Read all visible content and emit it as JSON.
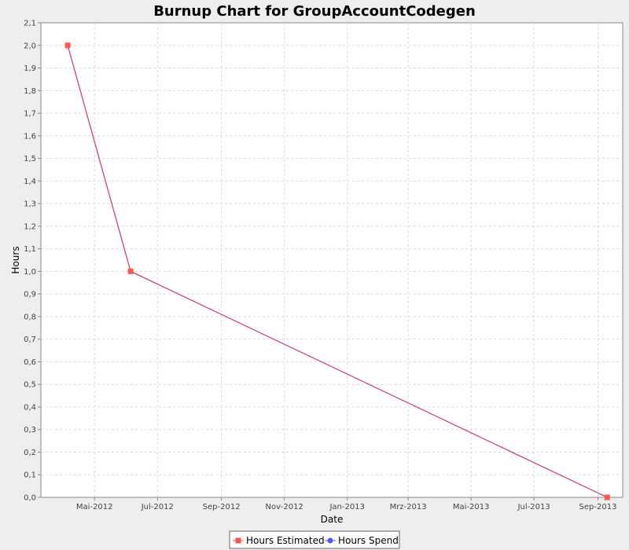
{
  "chart_data": {
    "type": "line",
    "title": "Burnup Chart for GroupAccountCodegen",
    "xlabel": "Date",
    "ylabel": "Hours",
    "ylim": [
      0.0,
      2.1
    ],
    "xlim": [
      "2012-03-10",
      "2013-09-25"
    ],
    "y_ticks": [
      "0,0",
      "0,1",
      "0,2",
      "0,3",
      "0,4",
      "0,5",
      "0,6",
      "0,7",
      "0,8",
      "0,9",
      "1,0",
      "1,1",
      "1,2",
      "1,3",
      "1,4",
      "1,5",
      "1,6",
      "1,7",
      "1,8",
      "1,9",
      "2,0",
      "2,1"
    ],
    "x_ticks": [
      {
        "label": "Mai-2012",
        "date": "2012-05-01"
      },
      {
        "label": "Jul-2012",
        "date": "2012-07-01"
      },
      {
        "label": "Sep-2012",
        "date": "2012-09-01"
      },
      {
        "label": "Nov-2012",
        "date": "2012-11-01"
      },
      {
        "label": "Jan-2013",
        "date": "2013-01-01"
      },
      {
        "label": "Mrz-2013",
        "date": "2013-03-01"
      },
      {
        "label": "Mai-2013",
        "date": "2013-05-01"
      },
      {
        "label": "Jul-2013",
        "date": "2013-07-01"
      },
      {
        "label": "Sep-2013",
        "date": "2013-09-01"
      }
    ],
    "grid": true,
    "legend_position": "bottom",
    "series": [
      {
        "name": "Hours Estimated",
        "color": "#ff5555",
        "line_color": "#cc4477",
        "marker": "square",
        "points": [
          {
            "x": "2012-04-05",
            "y": 2.0
          },
          {
            "x": "2012-06-05",
            "y": 1.0
          },
          {
            "x": "2013-09-10",
            "y": 0.0
          }
        ]
      },
      {
        "name": "Hours Spend",
        "color": "#5555ff",
        "marker": "circle",
        "points": []
      }
    ]
  }
}
